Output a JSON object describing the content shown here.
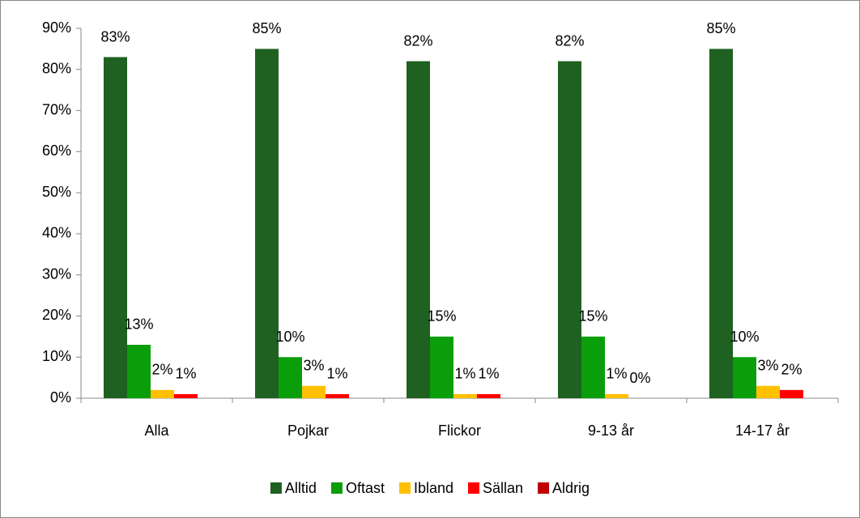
{
  "chart_data": {
    "type": "bar",
    "categories": [
      "Alla",
      "Pojkar",
      "Flickor",
      "9-13 år",
      "14-17 år"
    ],
    "series": [
      {
        "name": "Alltid",
        "color": "#1f6121",
        "values": [
          83,
          85,
          82,
          82,
          85
        ],
        "value_labels": [
          "83%",
          "85%",
          "82%",
          "82%",
          "85%"
        ]
      },
      {
        "name": "Oftast",
        "color": "#0a9e0a",
        "values": [
          13,
          10,
          15,
          15,
          10
        ],
        "value_labels": [
          "13%",
          "10%",
          "15%",
          "15%",
          "10%"
        ]
      },
      {
        "name": "Ibland",
        "color": "#ffc000",
        "values": [
          2,
          3,
          1,
          1,
          3
        ],
        "value_labels": [
          "2%",
          "3%",
          "1%",
          "1%",
          "3%"
        ]
      },
      {
        "name": "Sällan",
        "color": "#ff0000",
        "values": [
          1,
          1,
          1,
          0,
          2
        ],
        "value_labels": [
          "1%",
          "1%",
          "1%",
          "0%",
          "2%"
        ]
      },
      {
        "name": "Aldrig",
        "color": "#c00000",
        "values": [
          null,
          null,
          null,
          null,
          null
        ]
      }
    ],
    "ylim": [
      0,
      90
    ],
    "yticks": [
      {
        "value": 0,
        "label": "0%"
      },
      {
        "value": 10,
        "label": "10%"
      },
      {
        "value": 20,
        "label": "20%"
      },
      {
        "value": 30,
        "label": "30%"
      },
      {
        "value": 40,
        "label": "40%"
      },
      {
        "value": 50,
        "label": "50%"
      },
      {
        "value": 60,
        "label": "60%"
      },
      {
        "value": 70,
        "label": "70%"
      },
      {
        "value": 80,
        "label": "80%"
      },
      {
        "value": 90,
        "label": "90%"
      }
    ],
    "legend": "bottom"
  }
}
